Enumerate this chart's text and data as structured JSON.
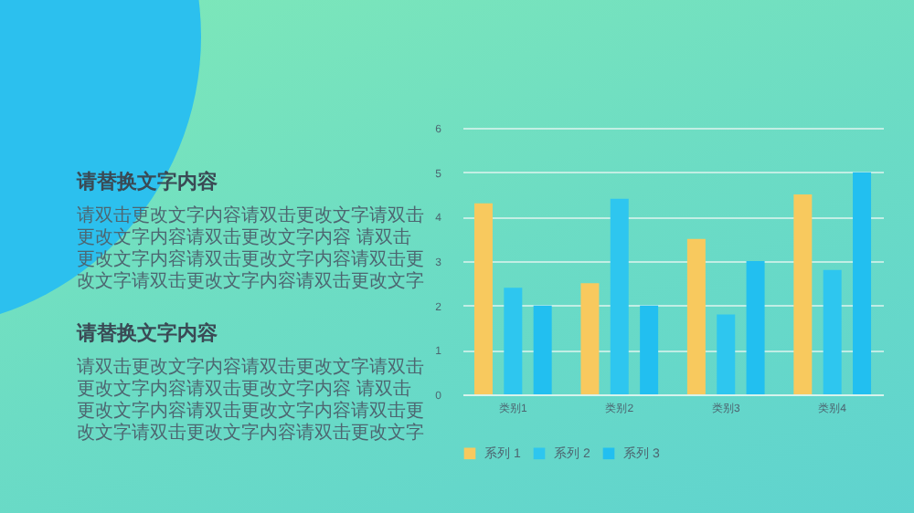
{
  "chart_data": {
    "type": "bar",
    "categories": [
      "类别1",
      "类别2",
      "类别3",
      "类别4"
    ],
    "series": [
      {
        "name": "系列 1",
        "color": "#f8c95e",
        "values": [
          4.3,
          2.5,
          3.5,
          4.5
        ]
      },
      {
        "name": "系列 2",
        "color": "#2ec6ef",
        "values": [
          2.4,
          4.4,
          1.8,
          2.8
        ]
      },
      {
        "name": "系列 3",
        "color": "#22bff0",
        "values": [
          2,
          2,
          3,
          5
        ]
      }
    ],
    "ylim": [
      0,
      6
    ],
    "yticks": [
      0,
      1,
      2,
      3,
      4,
      5,
      6
    ],
    "grid": "y",
    "legend": "bottom",
    "annotations": [
      "请替换文字内容",
      "请双击更改文字内容请双击更改文字请双击更改文字内容请双击更改文字内容 请双击更改文字内容请双击更改文字内容请双击更改文字请双击更改文字内容请双击更改文字",
      "请替换文字内容",
      "请双击更改文字内容请双击更改文字请双击更改文字内容请双击更改文字内容 请双击更改文字内容请双击更改文字内容请双击更改文字请双击更改文字内容请双击更改文字"
    ]
  }
}
